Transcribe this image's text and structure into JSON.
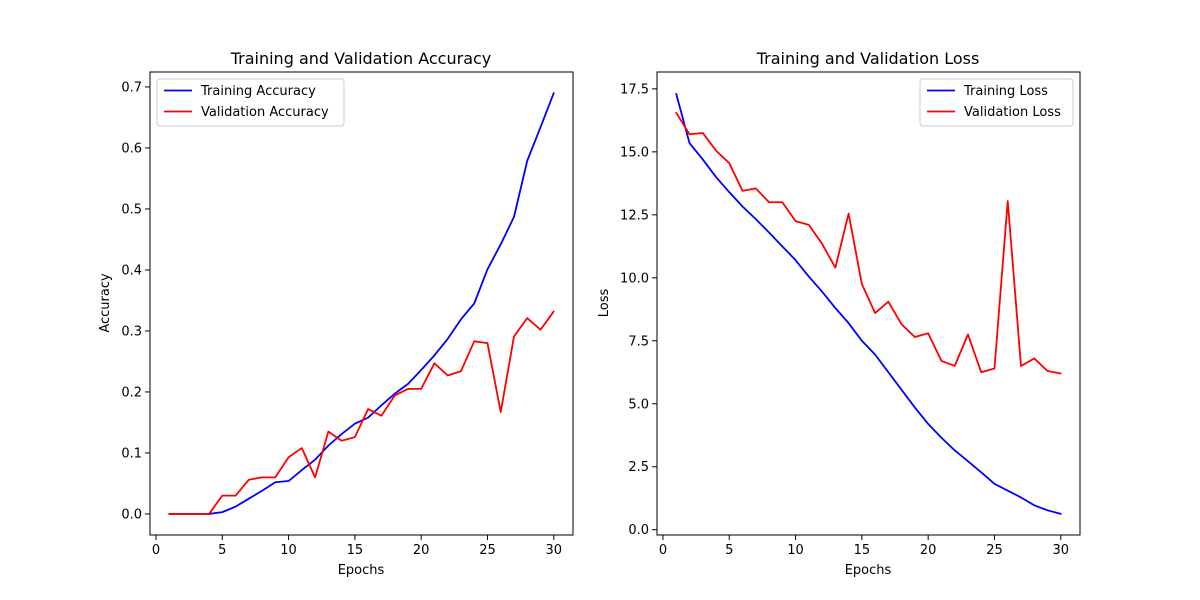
{
  "colors": {
    "training": "#0000ff",
    "validation": "#ff0000"
  },
  "chart_data": [
    {
      "type": "line",
      "title": "Training and Validation Accuracy",
      "xlabel": "Epochs",
      "ylabel": "Accuracy",
      "xlim": [
        -0.45,
        31.45
      ],
      "ylim": [
        -0.0345,
        0.7245
      ],
      "xticks": [
        0,
        5,
        10,
        15,
        20,
        25,
        30
      ],
      "yticks": [
        0.0,
        0.1,
        0.2,
        0.3,
        0.4,
        0.5,
        0.6,
        0.7
      ],
      "xtick_labels": [
        "0",
        "5",
        "10",
        "15",
        "20",
        "25",
        "30"
      ],
      "ytick_labels": [
        "0.0",
        "0.1",
        "0.2",
        "0.3",
        "0.4",
        "0.5",
        "0.6",
        "0.7"
      ],
      "legend_position": "upper left",
      "x": [
        1,
        2,
        3,
        4,
        5,
        6,
        7,
        8,
        9,
        10,
        11,
        12,
        13,
        14,
        15,
        16,
        17,
        18,
        19,
        20,
        21,
        22,
        23,
        24,
        25,
        26,
        27,
        28,
        29,
        30
      ],
      "series": [
        {
          "name": "Training Accuracy",
          "color": "#0000ff",
          "values": [
            0.0,
            0.0,
            0.0,
            0.0,
            0.003,
            0.012,
            0.025,
            0.038,
            0.052,
            0.054,
            0.072,
            0.089,
            0.112,
            0.131,
            0.148,
            0.158,
            0.178,
            0.197,
            0.213,
            0.236,
            0.26,
            0.287,
            0.319,
            0.345,
            0.401,
            0.442,
            0.487,
            0.579,
            0.634,
            0.69
          ]
        },
        {
          "name": "Validation Accuracy",
          "color": "#ff0000",
          "values": [
            0.0,
            0.0,
            0.0,
            0.0,
            0.03,
            0.03,
            0.056,
            0.06,
            0.06,
            0.093,
            0.108,
            0.06,
            0.135,
            0.12,
            0.126,
            0.172,
            0.161,
            0.194,
            0.205,
            0.205,
            0.247,
            0.227,
            0.234,
            0.283,
            0.28,
            0.167,
            0.291,
            0.321,
            0.302,
            0.332
          ]
        }
      ]
    },
    {
      "type": "line",
      "title": "Training and Validation Loss",
      "xlabel": "Epochs",
      "ylabel": "Loss",
      "xlim": [
        -0.45,
        31.45
      ],
      "ylim": [
        -0.21,
        18.17
      ],
      "xticks": [
        0,
        5,
        10,
        15,
        20,
        25,
        30
      ],
      "yticks": [
        0.0,
        2.5,
        5.0,
        7.5,
        10.0,
        12.5,
        15.0,
        17.5
      ],
      "xtick_labels": [
        "0",
        "5",
        "10",
        "15",
        "20",
        "25",
        "30"
      ],
      "ytick_labels": [
        "0.0",
        "2.5",
        "5.0",
        "7.5",
        "10.0",
        "12.5",
        "15.0",
        "17.5"
      ],
      "legend_position": "upper right",
      "x": [
        1,
        2,
        3,
        4,
        5,
        6,
        7,
        8,
        9,
        10,
        11,
        12,
        13,
        14,
        15,
        16,
        17,
        18,
        19,
        20,
        21,
        22,
        23,
        24,
        25,
        26,
        27,
        28,
        29,
        30
      ],
      "series": [
        {
          "name": "Training Loss",
          "color": "#0000ff",
          "values": [
            17.3,
            15.35,
            14.7,
            14.0,
            13.4,
            12.83,
            12.33,
            11.8,
            11.25,
            10.7,
            10.05,
            9.45,
            8.8,
            8.2,
            7.5,
            6.95,
            6.25,
            5.55,
            4.85,
            4.2,
            3.65,
            3.15,
            2.72,
            2.28,
            1.82,
            1.55,
            1.28,
            0.97,
            0.77,
            0.63
          ]
        },
        {
          "name": "Validation Loss",
          "color": "#ff0000",
          "values": [
            16.55,
            15.7,
            15.75,
            15.05,
            14.55,
            13.45,
            13.55,
            13.0,
            13.0,
            12.25,
            12.1,
            11.35,
            10.4,
            12.55,
            9.75,
            8.6,
            9.05,
            8.15,
            7.65,
            7.8,
            6.7,
            6.5,
            7.75,
            6.25,
            6.4,
            13.05,
            6.5,
            6.8,
            6.3,
            6.2
          ]
        }
      ]
    }
  ]
}
